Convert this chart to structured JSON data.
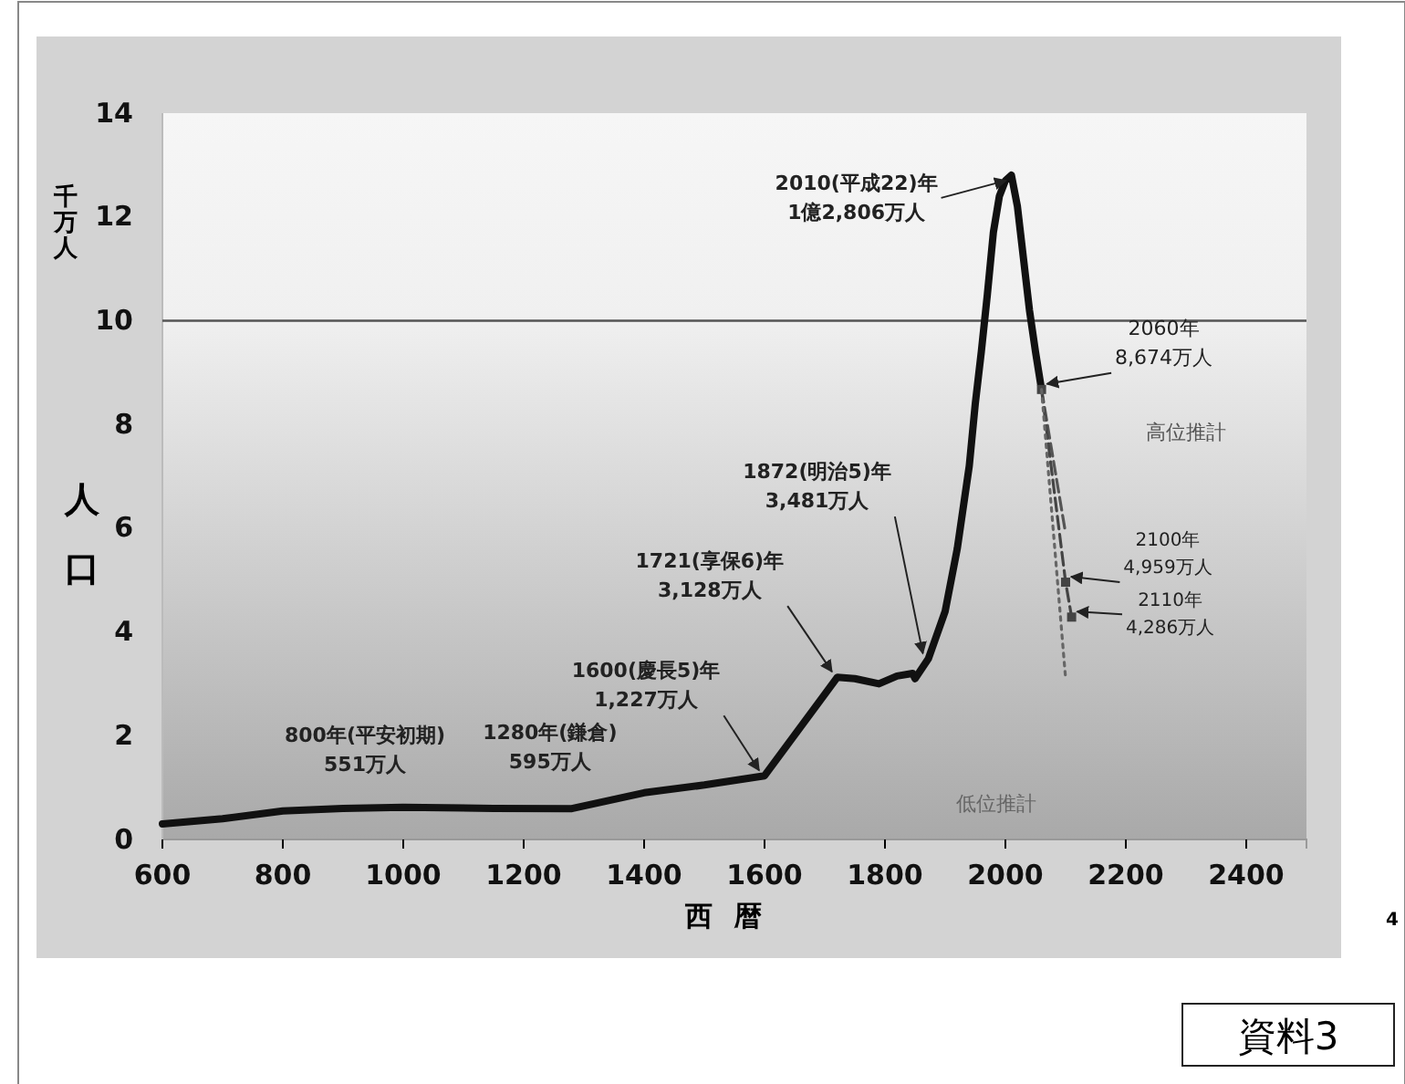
{
  "chart_data": {
    "type": "line",
    "xlabel": "西暦",
    "ylabel": "人口",
    "xlim": [
      600,
      2500
    ],
    "xticks": [
      600,
      800,
      1000,
      1200,
      1400,
      1600,
      1800,
      2000,
      2200,
      2400
    ],
    "ylim": [
      0,
      14
    ],
    "yticks": [
      0,
      2,
      4,
      6,
      8,
      10,
      12,
      14
    ],
    "grid": false,
    "legend": false,
    "ref_lines": [
      {
        "axis": "y",
        "value": 10,
        "color": "#555555"
      }
    ],
    "series": [
      {
        "color": "#111111",
        "line_style": "solid",
        "marker": "none",
        "x": [
          600,
          700,
          800,
          900,
          1000,
          1150,
          1280,
          1400,
          1500,
          1600,
          1721,
          1750,
          1790,
          1820,
          1846,
          1850,
          1872,
          1900,
          1920,
          1940,
          1950,
          1960,
          1970,
          1980,
          1990,
          2000,
          2010,
          2020,
          2030,
          2040,
          2050,
          2060
        ],
        "values": [
          0.3,
          0.4,
          0.551,
          0.6,
          0.62,
          0.6,
          0.595,
          0.9,
          1.05,
          1.227,
          3.128,
          3.1,
          3.0,
          3.15,
          3.2,
          3.1,
          3.481,
          4.4,
          5.6,
          7.2,
          8.4,
          9.4,
          10.5,
          11.7,
          12.4,
          12.7,
          12.806,
          12.2,
          11.2,
          10.2,
          9.4,
          8.674
        ]
      },
      {
        "name": "高位推計",
        "color": "#555555",
        "line_style": "dashed",
        "marker": "none",
        "x": [
          2060,
          2100
        ],
        "values": [
          8.674,
          5.9
        ]
      },
      {
        "color": "#444444",
        "line_style": "dashed",
        "marker": "square",
        "x": [
          2060,
          2100,
          2110
        ],
        "values": [
          8.674,
          4.959,
          4.286
        ]
      },
      {
        "name": "低位推計",
        "color": "#666666",
        "line_style": "dotted",
        "marker": "none",
        "x": [
          2060,
          2100
        ],
        "values": [
          8.674,
          3.1
        ]
      }
    ],
    "annotations": [
      {
        "text": "800年(平安初期)\n551万人",
        "x": 800,
        "y": 0.551
      },
      {
        "text": "1280年(鎌倉)\n595万人",
        "x": 1280,
        "y": 0.595
      },
      {
        "text": "1600(慶長5)年\n1,227万人",
        "x": 1600,
        "y": 1.227
      },
      {
        "text": "1721(享保6)年\n3,128万人",
        "x": 1721,
        "y": 3.128
      },
      {
        "text": "1872(明治5)年\n3,481万人",
        "x": 1872,
        "y": 3.481
      },
      {
        "text": "2010(平成22)年\n1億2,806万人",
        "x": 2010,
        "y": 12.806
      },
      {
        "text": "2060年\n8,674万人",
        "x": 2060,
        "y": 8.674
      },
      {
        "text": "2100年\n4,959万人",
        "x": 2100,
        "y": 4.959
      },
      {
        "text": "2110年\n4,286万人",
        "x": 2110,
        "y": 4.286
      },
      "千万人",
      "4",
      "資料3"
    ]
  }
}
